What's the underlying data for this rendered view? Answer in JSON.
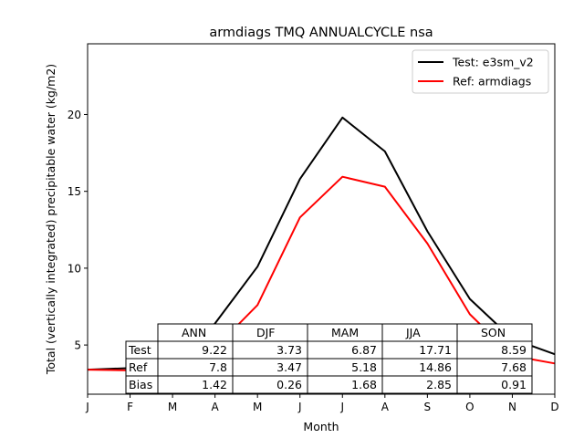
{
  "chart_data": {
    "type": "line",
    "title": "armdiags TMQ ANNUALCYCLE nsa",
    "xlabel": "Month",
    "ylabel": "Total (vertically integrated) precipitable water (kg/m2)",
    "x_ticks": [
      "J",
      "F",
      "M",
      "A",
      "M",
      "J",
      "J",
      "A",
      "S",
      "O",
      "N",
      "D"
    ],
    "xlim": [
      0,
      11
    ],
    "ylim": [
      1.8,
      24.6
    ],
    "y_ticks": [
      5,
      10,
      15,
      20
    ],
    "grid": false,
    "legend_position": "top-right",
    "series": [
      {
        "name": "Test: e3sm_v2",
        "color": "#000000",
        "values": [
          3.4,
          3.5,
          4.2,
          6.4,
          10.1,
          15.8,
          19.8,
          17.6,
          12.4,
          8.0,
          5.4,
          4.4
        ]
      },
      {
        "name": "Ref: armdiags",
        "color": "#ff0000",
        "values": [
          3.4,
          3.35,
          3.1,
          4.8,
          7.6,
          13.3,
          15.95,
          15.3,
          11.6,
          7.0,
          4.3,
          3.8
        ]
      }
    ],
    "table": {
      "columns": [
        "ANN",
        "DJF",
        "MAM",
        "JJA",
        "SON"
      ],
      "rows": [
        {
          "label": "Test",
          "values": [
            "9.22",
            "3.73",
            "6.87",
            "17.71",
            "8.59"
          ]
        },
        {
          "label": "Ref",
          "values": [
            "7.8",
            "3.47",
            "5.18",
            "14.86",
            "7.68"
          ]
        },
        {
          "label": "Bias",
          "values": [
            "1.42",
            "0.26",
            "1.68",
            "2.85",
            "0.91"
          ]
        }
      ]
    }
  }
}
